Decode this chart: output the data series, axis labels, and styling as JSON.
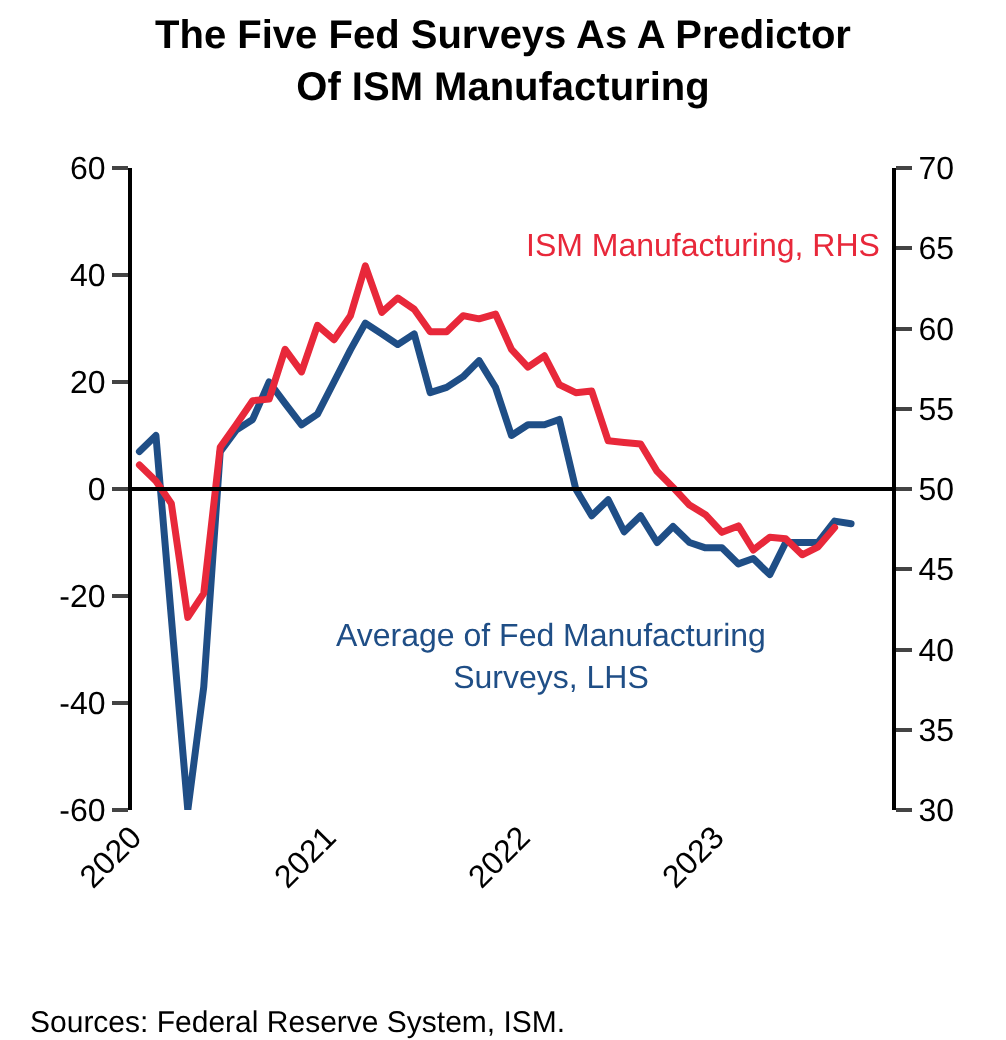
{
  "chart_data": {
    "type": "line",
    "title": "The Five Fed Surveys As A Predictor\nOf ISM Manufacturing",
    "x": [
      "2020-01-15",
      "2020-02-15",
      "2020-03-15",
      "2020-04-15",
      "2020-05-15",
      "2020-06-15",
      "2020-07-15",
      "2020-08-15",
      "2020-09-15",
      "2020-10-15",
      "2020-11-15",
      "2020-12-15",
      "2021-01-15",
      "2021-02-15",
      "2021-03-15",
      "2021-04-15",
      "2021-05-15",
      "2021-06-15",
      "2021-07-15",
      "2021-08-15",
      "2021-09-15",
      "2021-10-15",
      "2021-11-15",
      "2021-12-15",
      "2022-01-15",
      "2022-02-15",
      "2022-03-15",
      "2022-04-15",
      "2022-05-15",
      "2022-06-15",
      "2022-07-15",
      "2022-08-15",
      "2022-09-15",
      "2022-10-15",
      "2022-11-15",
      "2022-12-15",
      "2023-01-15",
      "2023-02-15",
      "2023-03-15",
      "2023-04-15",
      "2023-05-15",
      "2023-06-15",
      "2023-07-15",
      "2023-08-15",
      "2023-09-15"
    ],
    "series": [
      {
        "name": "Average of Fed Manufacturing\nSurveys, LHS",
        "color": "#1f4e86",
        "values": [
          7,
          10,
          -24,
          -60,
          -37,
          7,
          11,
          13,
          20,
          16,
          12,
          14,
          20,
          26,
          31,
          29,
          27,
          29,
          18,
          19,
          21,
          24,
          19,
          10,
          12,
          12,
          13,
          0,
          -5,
          -2,
          -8,
          -5,
          -10,
          -7,
          -10,
          -11,
          -11,
          -14,
          -13,
          -16,
          -10,
          -10,
          -10,
          -6,
          -6.5
        ]
      },
      {
        "name": "ISM Manufacturing, RHS",
        "color": "#e8283a",
        "axis": "y2",
        "values": [
          51.5,
          50.5,
          49.1,
          42,
          43.5,
          52.6,
          54,
          55.5,
          55.6,
          58.7,
          57.3,
          60.2,
          59.3,
          60.8,
          63.9,
          61,
          61.9,
          61.2,
          59.8,
          59.8,
          60.8,
          60.6,
          60.9,
          58.7,
          57.6,
          58.3,
          56.5,
          56,
          56.1,
          53,
          52.9,
          52.8,
          51.1,
          50.1,
          49,
          48.4,
          47.3,
          47.7,
          46.2,
          47,
          46.9,
          45.9,
          46.4,
          47.6,
          null
        ]
      }
    ],
    "xlim": [
      "2020-01-01",
      "2023-12-01"
    ],
    "xticks": [
      {
        "value": "2020-01-01",
        "label": "2020"
      },
      {
        "value": "2021-01-01",
        "label": "2021"
      },
      {
        "value": "2022-01-01",
        "label": "2022"
      },
      {
        "value": "2023-01-01",
        "label": "2023"
      }
    ],
    "ylim": [
      -60,
      60
    ],
    "yticks": [
      -60,
      -40,
      -20,
      0,
      20,
      40,
      60
    ],
    "y2lim": [
      30,
      70
    ],
    "y2ticks": [
      30,
      35,
      40,
      45,
      50,
      55,
      60,
      65,
      70
    ],
    "ref_lines": [
      {
        "axis": "y",
        "value": 0,
        "color": "#000000"
      }
    ],
    "annotations": [
      "Sources: Federal Reserve System, ISM."
    ]
  }
}
